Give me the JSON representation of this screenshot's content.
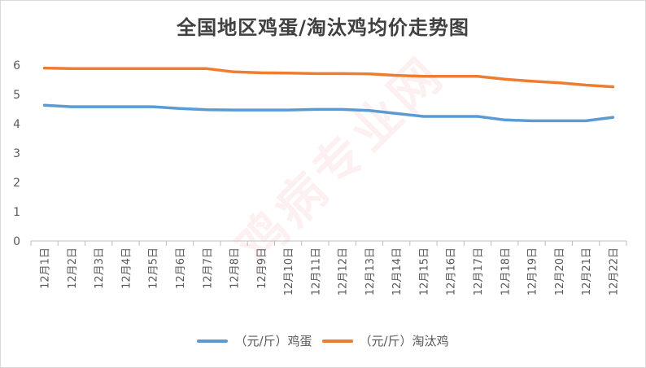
{
  "watermark": "鸡病专业网",
  "chart_data": {
    "type": "line",
    "title": "全国地区鸡蛋/淘汰鸡均价走势图",
    "xlabel": "",
    "ylabel": "",
    "ylim": [
      0,
      6
    ],
    "yticks": [
      0,
      1,
      2,
      3,
      4,
      5,
      6
    ],
    "grid": false,
    "legend": "bottom",
    "categories": [
      "12月1日",
      "12月2日",
      "12月3日",
      "12月4日",
      "12月5日",
      "12月6日",
      "12月7日",
      "12月8日",
      "12月9日",
      "12月10日",
      "12月11日",
      "12月12日",
      "12月13日",
      "12月14日",
      "12月15日",
      "12月16日",
      "12月17日",
      "12月18日",
      "12月19日",
      "12月20日",
      "12月21日",
      "12月22日"
    ],
    "series": [
      {
        "name": "（元/斤）鸡蛋",
        "color": "#5b9bd5",
        "values": [
          4.63,
          4.58,
          4.58,
          4.58,
          4.58,
          4.52,
          4.48,
          4.47,
          4.47,
          4.47,
          4.49,
          4.49,
          4.45,
          4.35,
          4.25,
          4.25,
          4.25,
          4.13,
          4.1,
          4.1,
          4.1,
          4.22
        ]
      },
      {
        "name": "（元/斤）淘汰鸡",
        "color": "#ed7d31",
        "values": [
          5.9,
          5.88,
          5.88,
          5.88,
          5.88,
          5.88,
          5.88,
          5.77,
          5.74,
          5.73,
          5.71,
          5.71,
          5.7,
          5.65,
          5.62,
          5.62,
          5.62,
          5.52,
          5.45,
          5.4,
          5.32,
          5.26
        ]
      }
    ]
  }
}
